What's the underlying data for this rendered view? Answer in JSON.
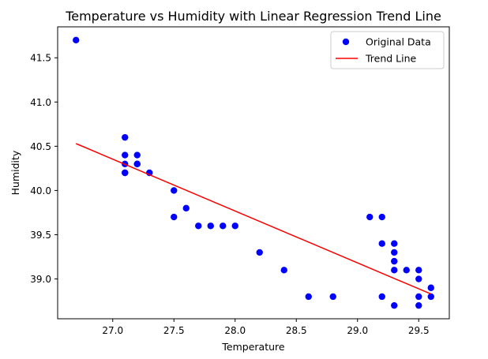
{
  "chart_data": {
    "type": "scatter",
    "title": "Temperature vs Humidity with Linear Regression Trend Line",
    "xlabel": "Temperature",
    "ylabel": "Humidity",
    "xlim": [
      26.55,
      29.75
    ],
    "ylim": [
      38.55,
      41.85
    ],
    "xticks": [
      27.0,
      27.5,
      28.0,
      28.5,
      29.0,
      29.5
    ],
    "xtick_labels": [
      "27.0",
      "27.5",
      "28.0",
      "28.5",
      "29.0",
      "29.5"
    ],
    "yticks": [
      39.0,
      39.5,
      40.0,
      40.5,
      41.0,
      41.5
    ],
    "ytick_labels": [
      "39.0",
      "39.5",
      "40.0",
      "40.5",
      "41.0",
      "41.5"
    ],
    "grid": false,
    "legend": {
      "placement": "top-right",
      "entries": [
        {
          "label": "Original Data",
          "kind": "marker",
          "color": "#0000ff"
        },
        {
          "label": "Trend Line",
          "kind": "line",
          "color": "#ff0000"
        }
      ]
    },
    "series": [
      {
        "name": "Original Data",
        "kind": "scatter",
        "color": "#0000ff",
        "points": [
          [
            26.7,
            41.7
          ],
          [
            27.1,
            40.6
          ],
          [
            27.1,
            40.4
          ],
          [
            27.1,
            40.3
          ],
          [
            27.1,
            40.2
          ],
          [
            27.1,
            40.2
          ],
          [
            27.2,
            40.4
          ],
          [
            27.2,
            40.3
          ],
          [
            27.2,
            40.3
          ],
          [
            27.3,
            40.2
          ],
          [
            27.5,
            40.0
          ],
          [
            27.5,
            39.7
          ],
          [
            27.6,
            39.8
          ],
          [
            27.7,
            39.6
          ],
          [
            27.8,
            39.6
          ],
          [
            27.9,
            39.6
          ],
          [
            28.0,
            39.6
          ],
          [
            28.2,
            39.3
          ],
          [
            28.4,
            39.1
          ],
          [
            28.6,
            38.8
          ],
          [
            28.8,
            38.8
          ],
          [
            29.1,
            39.7
          ],
          [
            29.2,
            39.7
          ],
          [
            29.2,
            39.4
          ],
          [
            29.2,
            38.8
          ],
          [
            29.3,
            39.4
          ],
          [
            29.3,
            39.3
          ],
          [
            29.3,
            39.2
          ],
          [
            29.3,
            39.1
          ],
          [
            29.3,
            38.7
          ],
          [
            29.4,
            39.1
          ],
          [
            29.5,
            39.1
          ],
          [
            29.5,
            39.0
          ],
          [
            29.5,
            38.8
          ],
          [
            29.5,
            38.7
          ],
          [
            29.6,
            38.9
          ],
          [
            29.6,
            38.8
          ]
        ]
      },
      {
        "name": "Trend Line",
        "kind": "line",
        "color": "#ff0000",
        "points": [
          [
            26.7,
            40.53
          ],
          [
            29.6,
            38.83
          ]
        ]
      }
    ]
  }
}
